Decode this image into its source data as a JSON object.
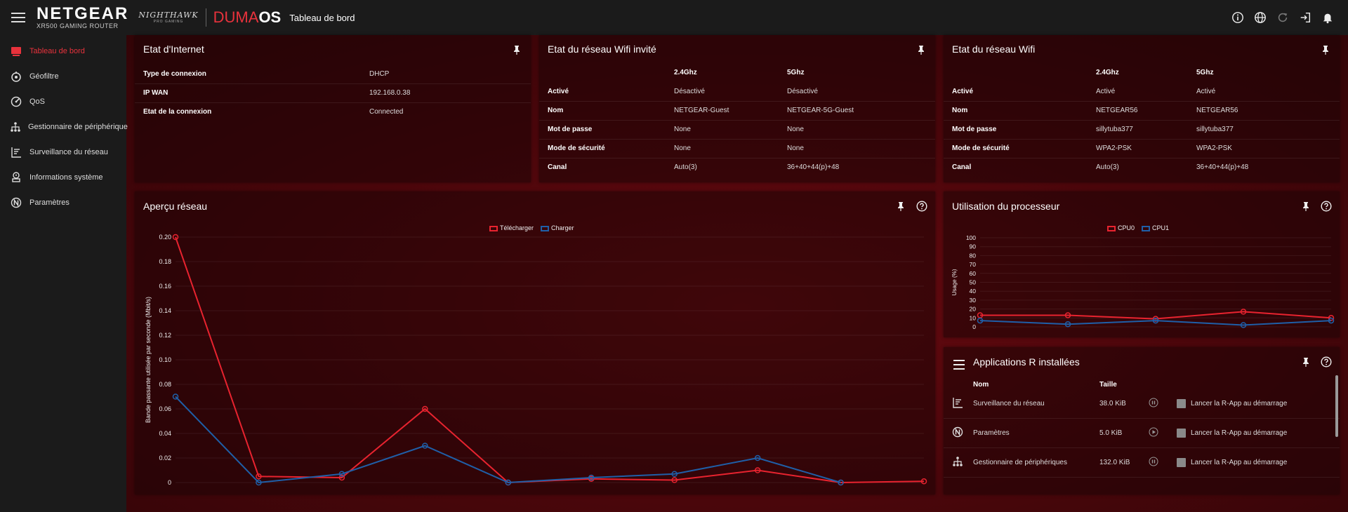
{
  "header": {
    "brand": "NETGEAR",
    "brand_sub": "XR500 GAMING ROUTER",
    "nighthawk": "NIGHTHAWK",
    "nighthawk_sub": "PRO GAMING",
    "duma_1": "DUMA",
    "duma_2": "OS",
    "page_title": "Tableau de bord",
    "icons": [
      "info-icon",
      "globe-icon",
      "refresh-icon",
      "logout-icon",
      "bell-icon"
    ]
  },
  "sidebar": {
    "items": [
      {
        "label": "Tableau de bord",
        "icon": "dashboard-icon"
      },
      {
        "label": "Géofiltre",
        "icon": "geofilter-icon"
      },
      {
        "label": "QoS",
        "icon": "qos-icon"
      },
      {
        "label": "Gestionnaire de périphérique",
        "icon": "device-manager-icon"
      },
      {
        "label": "Surveillance du réseau",
        "icon": "network-monitor-icon"
      },
      {
        "label": "Informations système",
        "icon": "system-info-icon"
      },
      {
        "label": "Paramètres",
        "icon": "settings-icon"
      }
    ]
  },
  "internet": {
    "title": "Etat d'Internet",
    "rows": [
      {
        "label": "Type de connexion",
        "value": "DHCP"
      },
      {
        "label": "IP WAN",
        "value": "192.168.0.38"
      },
      {
        "label": "Etat de la connexion",
        "value": "Connected"
      }
    ]
  },
  "guest_wifi": {
    "title": "Etat du réseau Wifi invité",
    "col1": "2.4Ghz",
    "col2": "5Ghz",
    "rows": [
      {
        "label": "Activé",
        "v1": "Désactivé",
        "v2": "Désactivé"
      },
      {
        "label": "Nom",
        "v1": "NETGEAR-Guest",
        "v2": "NETGEAR-5G-Guest"
      },
      {
        "label": "Mot de passe",
        "v1": "None",
        "v2": "None"
      },
      {
        "label": "Mode de sécurité",
        "v1": "None",
        "v2": "None"
      },
      {
        "label": "Canal",
        "v1": "Auto(3)",
        "v2": "36+40+44(p)+48"
      }
    ]
  },
  "wifi": {
    "title": "Etat du réseau Wifi",
    "col1": "2.4Ghz",
    "col2": "5Ghz",
    "rows": [
      {
        "label": "Activé",
        "v1": "Activé",
        "v2": "Activé"
      },
      {
        "label": "Nom",
        "v1": "NETGEAR56",
        "v2": "NETGEAR56"
      },
      {
        "label": "Mot de passe",
        "v1": "sillytuba377",
        "v2": "sillytuba377"
      },
      {
        "label": "Mode de sécurité",
        "v1": "WPA2-PSK",
        "v2": "WPA2-PSK"
      },
      {
        "label": "Canal",
        "v1": "Auto(3)",
        "v2": "36+40+44(p)+48"
      }
    ]
  },
  "network_overview": {
    "title": "Aperçu réseau",
    "chart_data": {
      "type": "line",
      "ylabel": "Bande passante utilisée par seconde (Mbit/s)",
      "ylim": [
        0,
        0.2
      ],
      "yticks": [
        "0.20",
        "0.18",
        "0.16",
        "0.14",
        "0.12",
        "0.10",
        "0.08",
        "0.06",
        "0.04",
        "0.02",
        "0"
      ],
      "legend": "top-center",
      "grid": true,
      "series": [
        {
          "name": "Télécharger",
          "color": "#e8232f",
          "values": [
            0.2,
            0.005,
            0.004,
            0.06,
            0,
            0.003,
            0.002,
            0.01,
            0,
            0.001
          ]
        },
        {
          "name": "Charger",
          "color": "#1f5fa8",
          "values": [
            0.07,
            0,
            0.007,
            0.03,
            0,
            0.004,
            0.007,
            0.02,
            0,
            null
          ]
        }
      ]
    }
  },
  "cpu": {
    "title": "Utilisation du processeur",
    "chart_data": {
      "type": "line",
      "ylabel": "Usage (%)",
      "ylim": [
        0,
        100
      ],
      "yticks": [
        "100",
        "90",
        "80",
        "70",
        "60",
        "50",
        "40",
        "30",
        "20",
        "10",
        "0"
      ],
      "legend": "top-center",
      "grid": true,
      "series": [
        {
          "name": "CPU0",
          "color": "#e8232f",
          "values": [
            13,
            13,
            9,
            17,
            10
          ]
        },
        {
          "name": "CPU1",
          "color": "#1f5fa8",
          "values": [
            7,
            3,
            7,
            2,
            7
          ]
        }
      ]
    }
  },
  "apps": {
    "title": "Applications R installées",
    "col_name": "Nom",
    "col_size": "Taille",
    "rows": [
      {
        "name": "Surveillance du réseau",
        "size": "38.0 KiB",
        "state": "pause-icon",
        "icon": "network-monitor-icon",
        "checkbox_label": "Lancer la R-App au démarrage"
      },
      {
        "name": "Paramètres",
        "size": "5.0 KiB",
        "state": "play-icon",
        "icon": "settings-icon",
        "checkbox_label": "Lancer la R-App au démarrage"
      },
      {
        "name": "Gestionnaire de périphériques",
        "size": "132.0 KiB",
        "state": "pause-icon",
        "icon": "device-manager-icon",
        "checkbox_label": "Lancer la R-App au démarrage"
      }
    ]
  }
}
